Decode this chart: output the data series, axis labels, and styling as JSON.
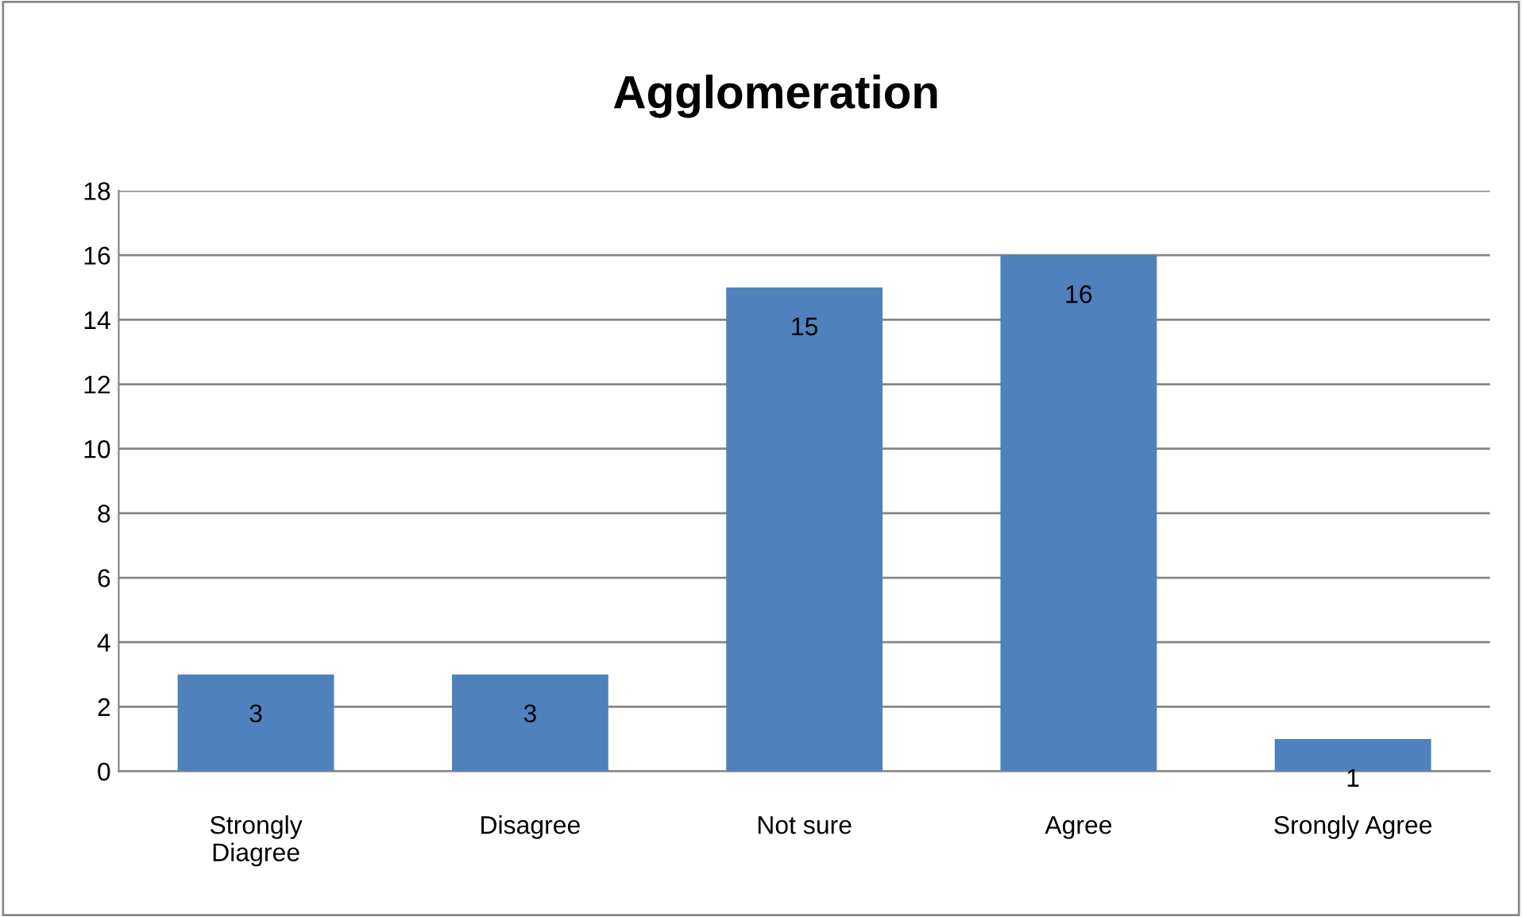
{
  "chart_data": {
    "type": "bar",
    "title": "Agglomeration",
    "categories": [
      "Strongly Diagree",
      "Disagree",
      "Not sure",
      "Agree",
      "Srongly Agree"
    ],
    "values": [
      3,
      3,
      15,
      16,
      1
    ],
    "color": "#4f81bd",
    "ylim": [
      0,
      18
    ],
    "yticks": [
      0,
      2,
      4,
      6,
      8,
      10,
      12,
      14,
      16,
      18
    ],
    "grid": "y",
    "data_labels": true,
    "legend": false
  }
}
